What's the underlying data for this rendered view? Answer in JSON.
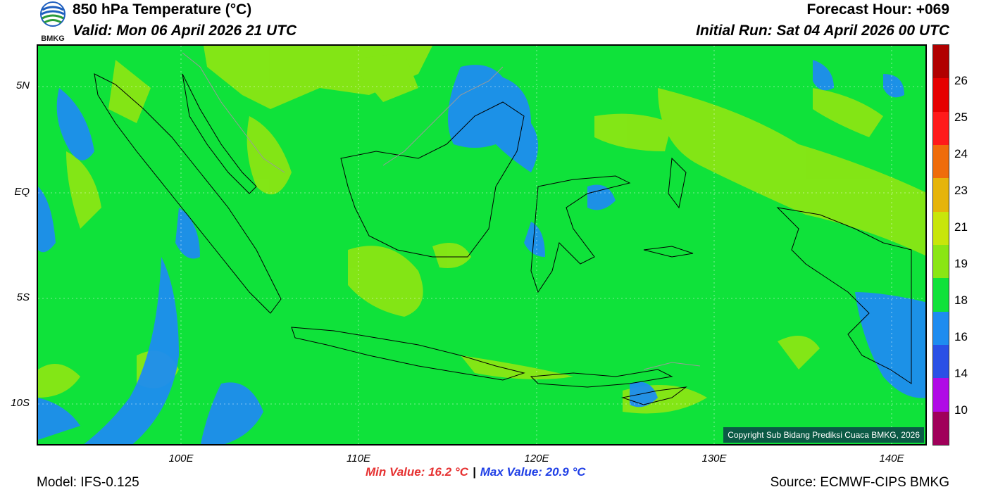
{
  "header": {
    "title": "850 hPa Temperature (°C)",
    "valid": "Valid: Mon 06 April 2026 21 UTC",
    "forecast_hour": "Forecast Hour: +069",
    "initial_run": "Initial Run: Sat 04 April 2026 00 UTC"
  },
  "logo": {
    "text": "BMKG"
  },
  "map": {
    "y_ticks": [
      "5N",
      "EQ",
      "5S",
      "10S"
    ],
    "x_ticks": [
      "100E",
      "110E",
      "120E",
      "130E",
      "140E"
    ],
    "copyright": "Copyright Sub Bidang Prediksi Cuaca BMKG, 2026"
  },
  "colorbar": {
    "labels": [
      "26",
      "25",
      "24",
      "23",
      "21",
      "19",
      "18",
      "16",
      "14",
      "10"
    ],
    "colors": [
      "#b10000",
      "#e60000",
      "#ff1a1a",
      "#ef6c0a",
      "#e6b40a",
      "#c8e60a",
      "#8ae614",
      "#0fe23a",
      "#1e8cf0",
      "#2a50e6",
      "#b00ae6",
      "#a0005a"
    ]
  },
  "stats": {
    "min": "Min Value: 16.2 °C",
    "separator": "|",
    "max": "Max Value: 20.9 °C"
  },
  "footer": {
    "model": "Model: IFS-0.125",
    "source": "Source: ECMWF-CIPS BMKG"
  }
}
